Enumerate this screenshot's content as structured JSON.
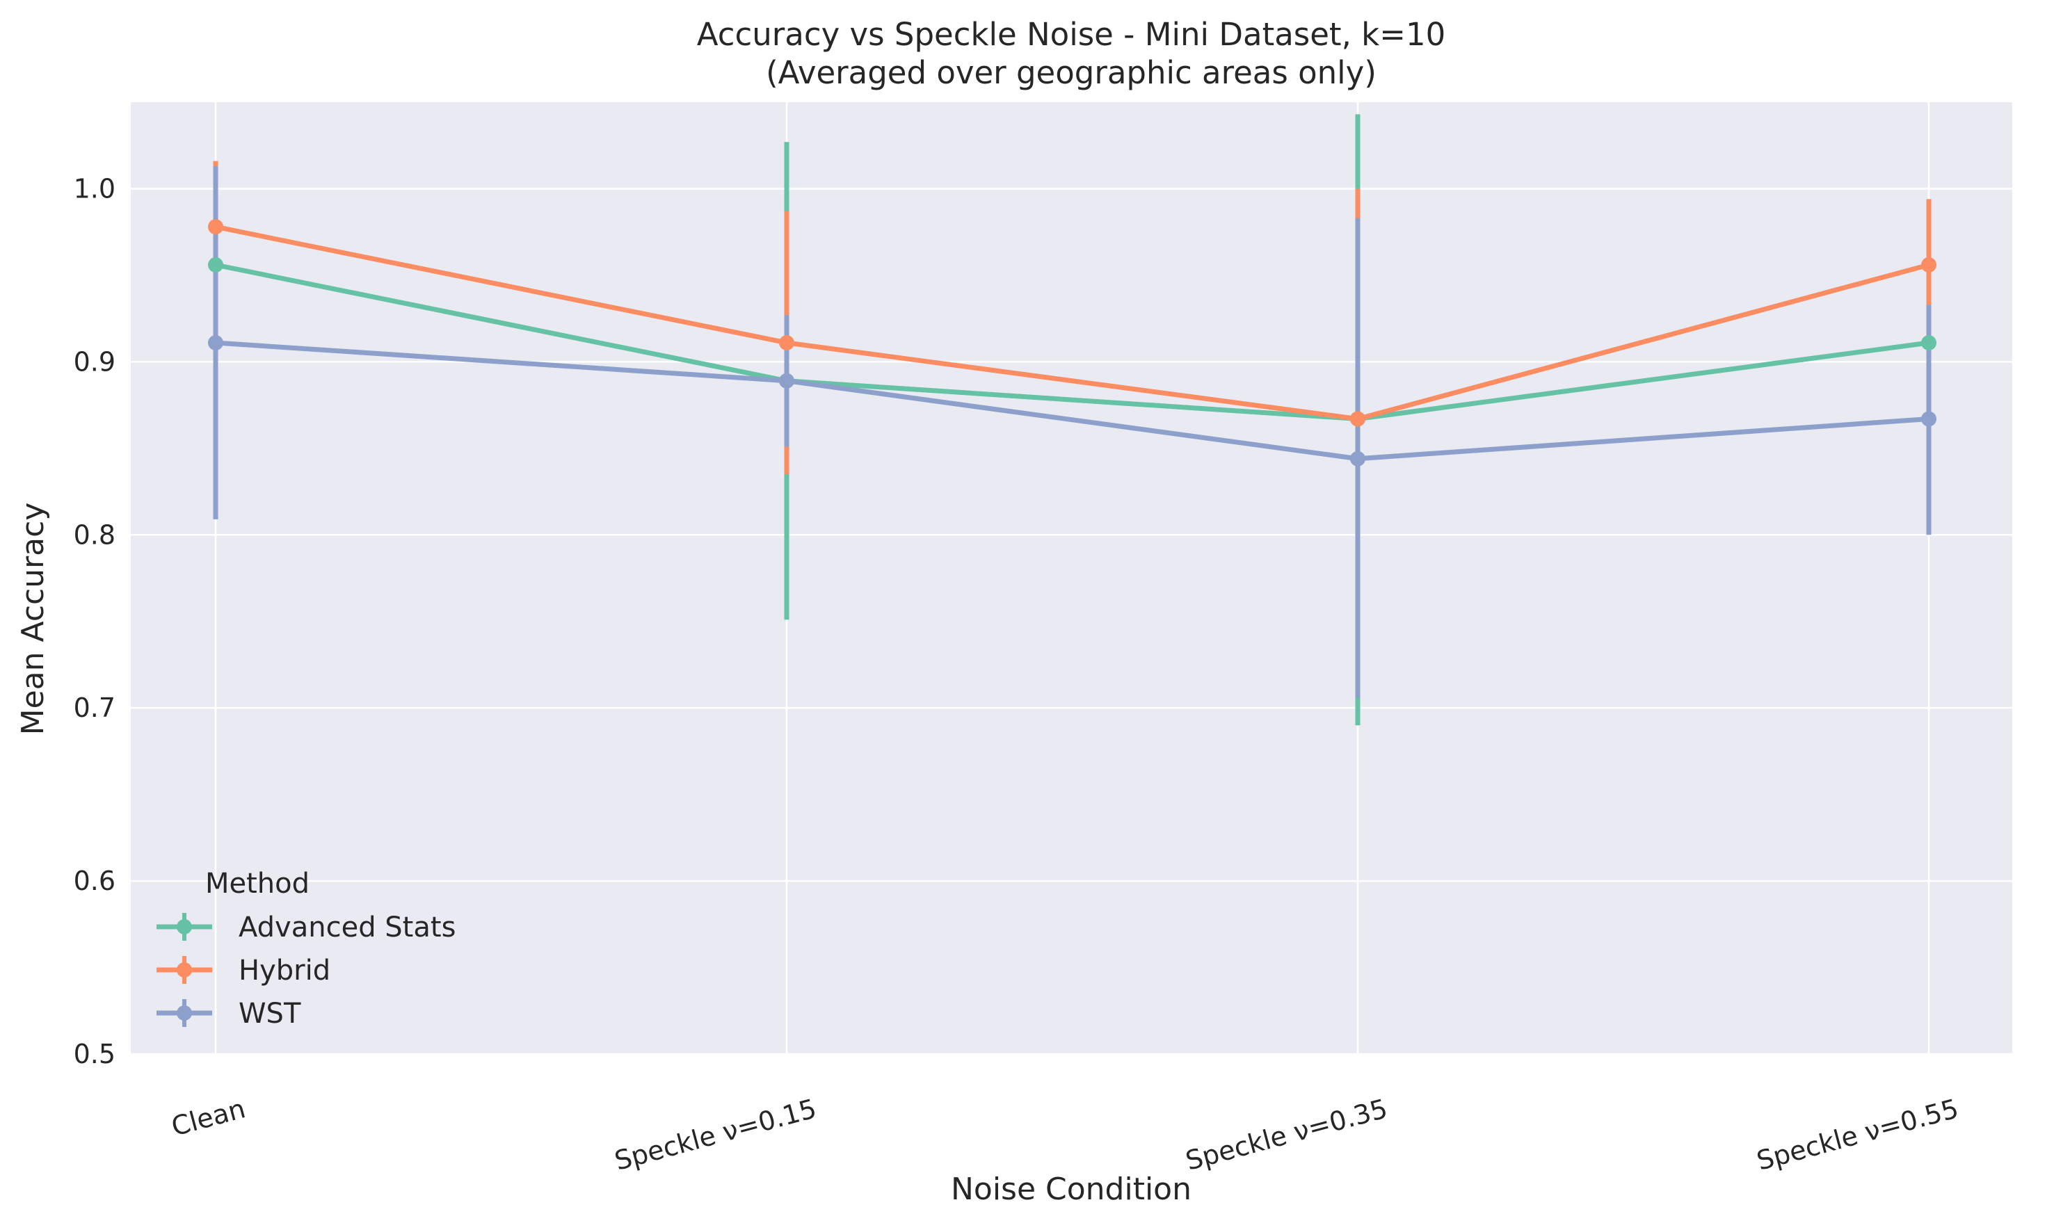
{
  "chart_data": {
    "type": "line",
    "title": "Accuracy vs Speckle Noise - Mini Dataset, k=10",
    "subtitle": "(Averaged over geographic areas only)",
    "xlabel": "Noise Condition",
    "ylabel": "Mean Accuracy",
    "categories": [
      "Clean",
      "Speckle ν=0.15",
      "Speckle ν=0.35",
      "Speckle ν=0.55"
    ],
    "ylim": [
      0.5,
      1.05
    ],
    "yticks": [
      "0.5",
      "0.6",
      "0.7",
      "0.8",
      "0.9",
      "1.0"
    ],
    "ytick_values": [
      0.5,
      0.6,
      0.7,
      0.8,
      0.9,
      1.0
    ],
    "grid": true,
    "legend": {
      "title": "Method",
      "placement": "lower-left"
    },
    "series": [
      {
        "name": "Advanced Stats",
        "color": "#66c2a5",
        "values": [
          0.956,
          0.889,
          0.867,
          0.911
        ],
        "err_low": [
          0.933,
          0.751,
          0.69,
          0.889
        ],
        "err_high": [
          0.978,
          1.027,
          1.043,
          0.933
        ]
      },
      {
        "name": "Hybrid",
        "color": "#fc8d62",
        "values": [
          0.978,
          0.911,
          0.867,
          0.956
        ],
        "err_low": [
          0.94,
          0.835,
          0.733,
          0.918
        ],
        "err_high": [
          1.016,
          0.987,
          1.0,
          0.994
        ]
      },
      {
        "name": "WST",
        "color": "#8da0cb",
        "values": [
          0.911,
          0.889,
          0.844,
          0.867
        ],
        "err_low": [
          0.809,
          0.851,
          0.706,
          0.8
        ],
        "err_high": [
          1.013,
          0.927,
          0.983,
          0.933
        ]
      }
    ]
  }
}
